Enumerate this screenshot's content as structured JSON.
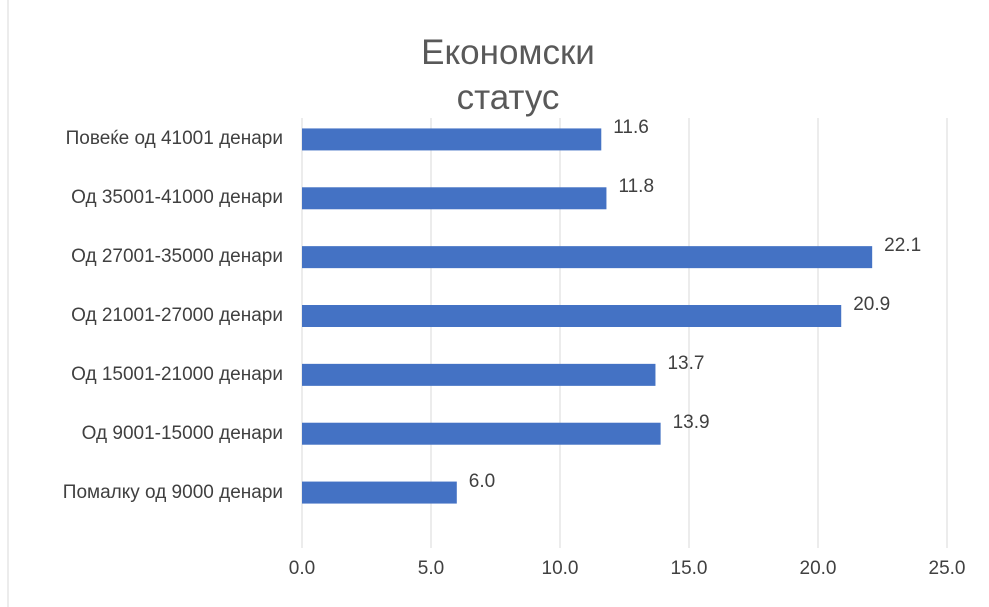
{
  "chart_data": {
    "type": "bar",
    "orientation": "horizontal",
    "title": "Економски статус",
    "categories": [
      "Повеќе од 41001 денари",
      "Од 35001-41000 денари",
      "Од 27001-35000 денари",
      "Од 21001-27000 денари",
      "Од 15001-21000 денари",
      "Од 9001-15000 денари",
      "Помалку од 9000 денари"
    ],
    "values": [
      11.6,
      11.8,
      22.1,
      20.9,
      13.7,
      13.9,
      6.0
    ],
    "value_labels": [
      "11.6",
      "11.8",
      "22.1",
      "20.9",
      "13.7",
      "13.9",
      "6.0"
    ],
    "color": "#4472c4",
    "xlim": [
      0,
      25
    ],
    "xticks": [
      {
        "value": 0,
        "label": "0.0"
      },
      {
        "value": 5,
        "label": "5.0"
      },
      {
        "value": 10,
        "label": "10.0"
      },
      {
        "value": 15,
        "label": "15.0"
      },
      {
        "value": 20,
        "label": "20.0"
      },
      {
        "value": 25,
        "label": "25.0"
      }
    ],
    "grid": true
  }
}
